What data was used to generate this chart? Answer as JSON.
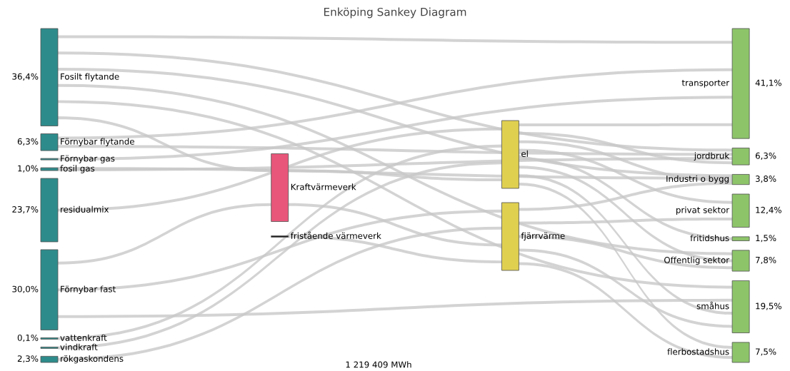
{
  "chart_data": {
    "type": "other",
    "title": "Enköping Sankey Diagram",
    "annotations": [
      "1 219 409 MWh"
    ],
    "categories": [
      "Fosilt flytande",
      "Förnybar flytande",
      "Förnybar gas",
      "fosil gas",
      "residualmix",
      "Förnybar fast",
      "vattenkraft",
      "vindkraft",
      "rökgaskondens",
      "Kraftvärmeverk",
      "fristående värmeverk",
      "el",
      "fjärrvärme",
      "transporter",
      "jordbruk",
      "Industri o bygg",
      "privat sektor",
      "fritidshus",
      "Offentlig sektor",
      "småhus",
      "flerbostadshus"
    ],
    "values": [
      36.4,
      6.3,
      null,
      1.0,
      23.7,
      30.0,
      0.1,
      null,
      2.3,
      null,
      null,
      null,
      null,
      41.1,
      6.3,
      3.8,
      12.4,
      1.5,
      7.8,
      19.5,
      7.5
    ],
    "value_labels": [
      "36,4%",
      "6,3%",
      null,
      "1,0%",
      "23,7%",
      "30,0%",
      "0,1%",
      null,
      "2,3%",
      null,
      null,
      null,
      null,
      "41,1%",
      "6,3%",
      "3,8%",
      "12,4%",
      "1,5%",
      "7,8%",
      "19,5%",
      "7,5%"
    ],
    "colors": [
      "#2e8b8b",
      "#2e8b8b",
      "#2e8b8b",
      "#2e8b8b",
      "#2e8b8b",
      "#2e8b8b",
      "#2e8b8b",
      "#2e8b8b",
      "#2e8b8b",
      "#e8567a",
      "#222222",
      "#e0d050",
      "#e0d050",
      "#8dc46a",
      "#8dc46a",
      "#8dc46a",
      "#8dc46a",
      "#8dc46a",
      "#8dc46a",
      "#8dc46a",
      "#8dc46a"
    ]
  }
}
